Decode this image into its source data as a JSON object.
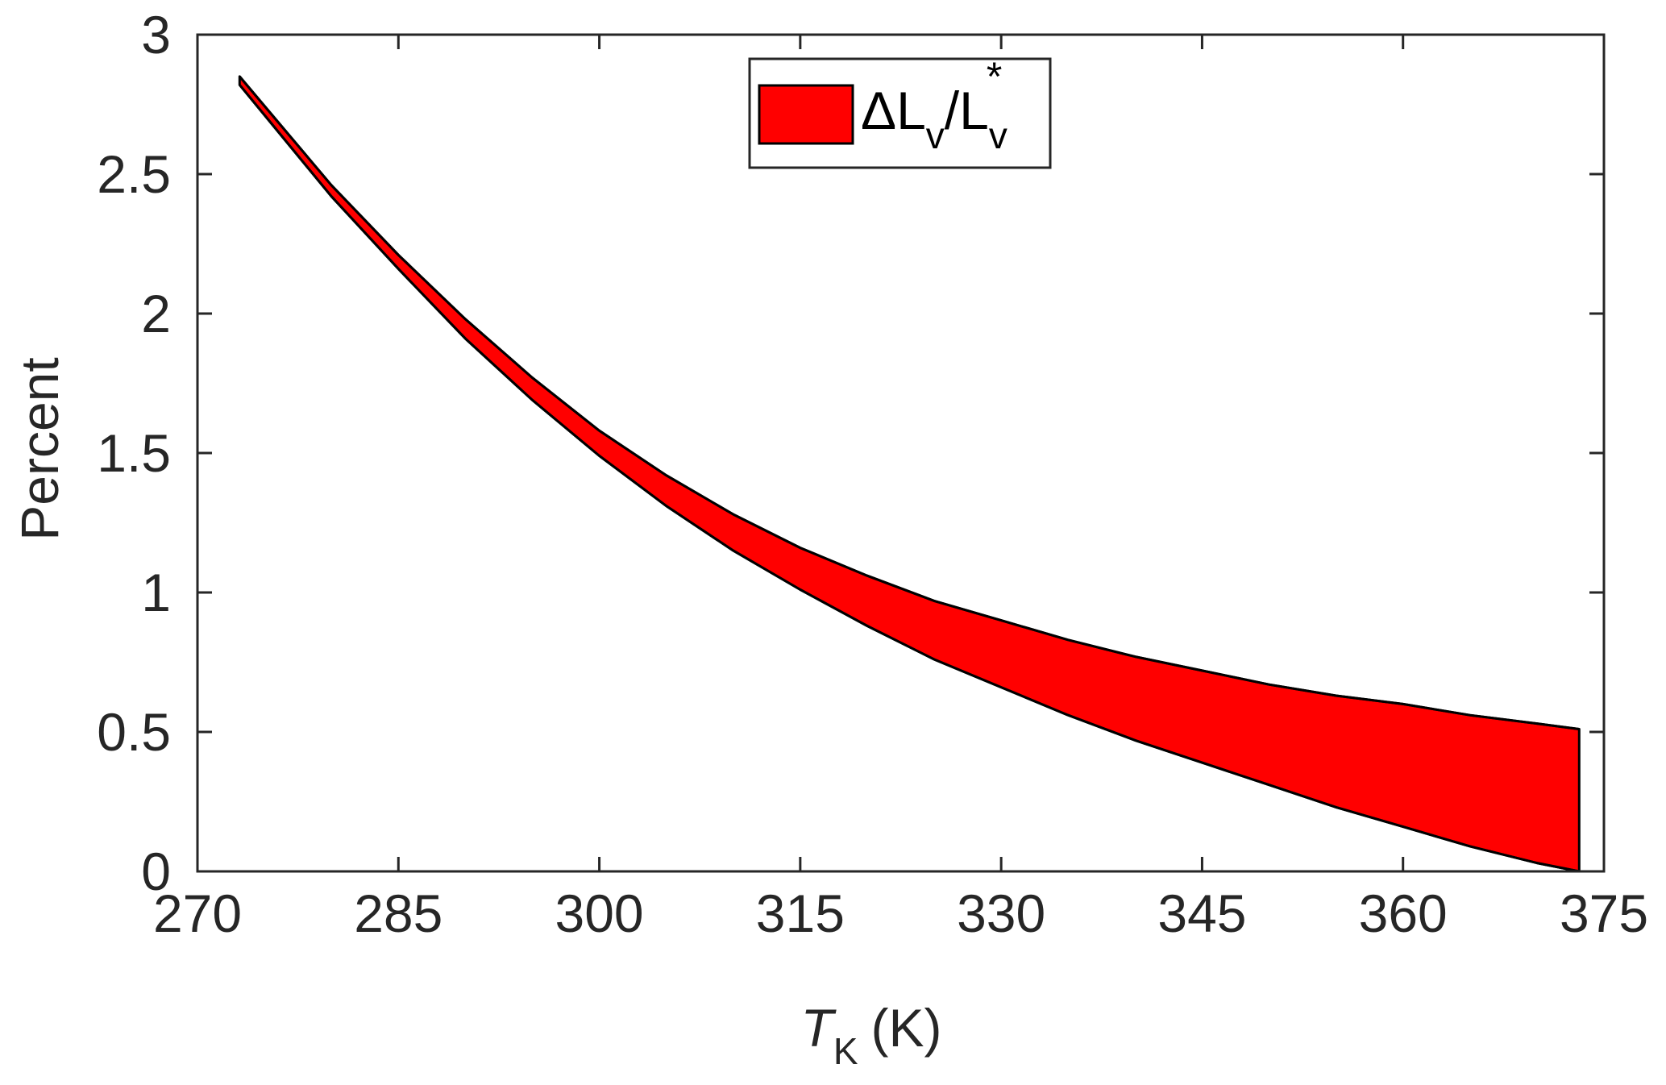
{
  "chart_data": {
    "type": "area",
    "title": "",
    "xlabel": {
      "symbol": "T",
      "subscript": "K",
      "unit": "(K)"
    },
    "ylabel": "Percent",
    "xlim": [
      270,
      375
    ],
    "ylim": [
      0,
      3
    ],
    "xticks": [
      270,
      285,
      300,
      315,
      330,
      345,
      360,
      375
    ],
    "yticks": [
      0,
      0.5,
      1,
      1.5,
      2,
      2.5,
      3
    ],
    "ytick_labels": [
      "0",
      "0.5",
      "1",
      "1.5",
      "2",
      "2.5",
      "3"
    ],
    "grid": false,
    "legend": {
      "location": "top-center",
      "entries": [
        {
          "series": "band",
          "label_parts": [
            "ΔL",
            "v",
            "/L",
            "v",
            "*"
          ]
        }
      ]
    },
    "series": [
      {
        "id": "band",
        "fill_color": "#ff0000",
        "edge_color": "#000000",
        "x": [
          273.15,
          280,
          285,
          290,
          295,
          300,
          305,
          310,
          315,
          320,
          325,
          330,
          335,
          340,
          345,
          350,
          355,
          360,
          365,
          370,
          373.15
        ],
        "upper": [
          2.85,
          2.46,
          2.21,
          1.98,
          1.77,
          1.58,
          1.42,
          1.28,
          1.16,
          1.06,
          0.97,
          0.9,
          0.83,
          0.77,
          0.72,
          0.67,
          0.63,
          0.6,
          0.56,
          0.53,
          0.51
        ],
        "lower": [
          2.82,
          2.42,
          2.16,
          1.91,
          1.69,
          1.49,
          1.31,
          1.15,
          1.01,
          0.88,
          0.76,
          0.66,
          0.56,
          0.47,
          0.39,
          0.31,
          0.23,
          0.16,
          0.09,
          0.03,
          0.0
        ]
      }
    ]
  }
}
